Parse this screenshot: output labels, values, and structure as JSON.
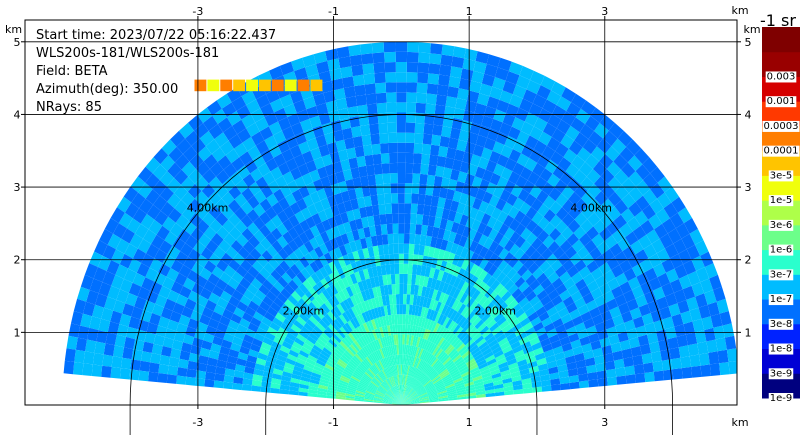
{
  "chart_data": {
    "type": "heatmap",
    "subtype": "radar-rhi-sector",
    "info_lines": [
      "Start time: 2023/07/22 05:16:22.437",
      "WLS200s-181/WLS200s-181",
      "Field: BETA",
      "Azimuth(deg): 350.00",
      "NRays: 85"
    ],
    "x_axis": {
      "unit": "km",
      "range": [
        -5.55,
        4.95
      ],
      "ticks": [
        -3,
        -1,
        1,
        3
      ],
      "tick_labels": [
        "-3",
        "-1",
        "1",
        "3"
      ]
    },
    "y_axis": {
      "unit": "km",
      "range": [
        0,
        5.3
      ],
      "ticks": [
        1,
        2,
        3,
        4,
        5
      ],
      "tick_labels": [
        "1",
        "2",
        "3",
        "4",
        "5"
      ]
    },
    "grid": true,
    "sector": {
      "max_range_km": 5.0,
      "min_elevation_deg": 5,
      "max_elevation_deg": 175
    },
    "range_rings": [
      {
        "radius_km": 2.0,
        "label": "2.00km"
      },
      {
        "radius_km": 4.0,
        "label": "4.00km"
      }
    ],
    "colorbar": {
      "unit_label": "-1 sr",
      "levels": [
        "1e-9",
        "3e-9",
        "1e-8",
        "3e-8",
        "1e-7",
        "3e-7",
        "1e-6",
        "3e-6",
        "1e-5",
        "3e-5",
        "0.0001",
        "0.0003",
        "0.001",
        "0.003"
      ],
      "colors": [
        "#00007f",
        "#0000d5",
        "#0022ff",
        "#0070ff",
        "#00bcff",
        "#2affcd",
        "#6cff8a",
        "#aeff49",
        "#f0ff0c",
        "#ffc400",
        "#ff7e00",
        "#ff3900",
        "#d50000",
        "#990000",
        "#7f0000"
      ]
    },
    "features": [
      {
        "name": "elevated layer",
        "height_km": 4.4,
        "x_range_km": [
          -3.05,
          -1.15
        ],
        "value": "3e-5"
      }
    ]
  }
}
